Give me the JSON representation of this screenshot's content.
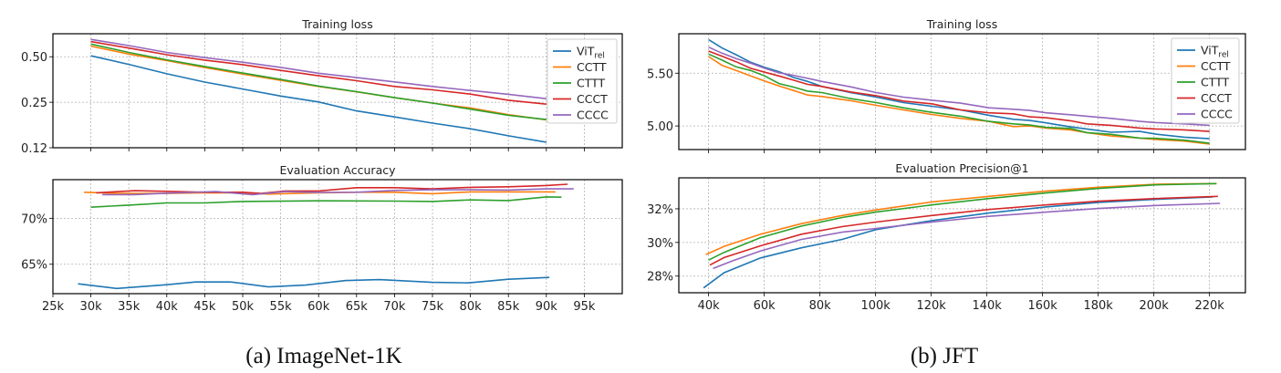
{
  "captions": [
    "(a) ImageNet-1K",
    "(b) JFT"
  ],
  "colors": {
    "ViT_rel": "#1f77b4",
    "CCTT": "#ff7f0e",
    "CTTT": "#2ca02c",
    "CCCT": "#d62728",
    "CCCC": "#9467bd"
  },
  "chart_data": [
    {
      "type": "line",
      "panel": "a",
      "title": "Training loss",
      "yscale": "log2",
      "ylim": [
        0.125,
        0.71
      ],
      "xlim": [
        25,
        100
      ],
      "grid": true,
      "legend": "top-right",
      "yticks": [
        0.5,
        0.25,
        0.125
      ],
      "ytick_labels": [
        "0.50",
        "0.25",
        "0.12"
      ],
      "xticks": [
        30,
        35,
        40,
        45,
        50,
        55,
        60,
        65,
        70,
        75,
        80,
        85,
        90,
        95
      ],
      "xtick_labels": [],
      "x": [
        30,
        35,
        40,
        45,
        50,
        55,
        60,
        65,
        70,
        75,
        80,
        85,
        90
      ],
      "series": [
        {
          "name": "ViT_rel",
          "y": [
            0.507,
            0.445,
            0.386,
            0.34,
            0.306,
            0.275,
            0.251,
            0.219,
            0.2,
            0.182,
            0.167,
            0.15,
            0.136
          ]
        },
        {
          "name": "CCTT",
          "y": [
            0.588,
            0.521,
            0.471,
            0.424,
            0.384,
            0.349,
            0.318,
            0.293,
            0.268,
            0.247,
            0.229,
            0.207,
            0.191
          ]
        },
        {
          "name": "CTTT",
          "y": [
            0.607,
            0.534,
            0.477,
            0.431,
            0.39,
            0.354,
            0.32,
            0.294,
            0.268,
            0.247,
            0.225,
            0.205,
            0.192
          ]
        },
        {
          "name": "CCCT",
          "y": [
            0.63,
            0.571,
            0.516,
            0.475,
            0.443,
            0.406,
            0.374,
            0.347,
            0.318,
            0.302,
            0.283,
            0.258,
            0.243
          ]
        },
        {
          "name": "CCCC",
          "y": [
            0.651,
            0.593,
            0.534,
            0.493,
            0.46,
            0.425,
            0.389,
            0.364,
            0.341,
            0.318,
            0.299,
            0.282,
            0.264
          ]
        }
      ]
    },
    {
      "type": "line",
      "panel": "a",
      "title": "Evaluation Accuracy",
      "ylim": [
        61.8,
        74.2
      ],
      "xlim": [
        25,
        100
      ],
      "grid": true,
      "yticks": [
        70,
        65
      ],
      "ytick_labels": [
        "70%",
        "65%"
      ],
      "xticks": [
        25,
        30,
        35,
        40,
        45,
        50,
        55,
        60,
        65,
        70,
        75,
        80,
        85,
        90,
        95
      ],
      "xtick_labels": [
        "25k",
        "30k",
        "35k",
        "40k",
        "45k",
        "50k",
        "55k",
        "60k",
        "65k",
        "70k",
        "75k",
        "80k",
        "85k",
        "90k",
        "95k"
      ],
      "series": [
        {
          "name": "ViT_rel",
          "x": [
            28.3,
            33.4,
            40,
            43.8,
            48.4,
            53.4,
            58.3,
            63.6,
            68,
            75,
            79.7,
            85,
            90.4
          ],
          "y": [
            62.87,
            62.37,
            62.77,
            63.07,
            63.07,
            62.53,
            62.73,
            63.23,
            63.33,
            63.03,
            62.97,
            63.37,
            63.57
          ]
        },
        {
          "name": "CCTT",
          "x": [
            29.1,
            34.2,
            40,
            45,
            50,
            53.4,
            60,
            65,
            70,
            75,
            80,
            85,
            91.2
          ],
          "y": [
            72.83,
            72.7,
            72.7,
            72.77,
            72.77,
            72.63,
            72.77,
            72.83,
            72.83,
            72.67,
            72.87,
            72.87,
            72.87
          ]
        },
        {
          "name": "CTTT",
          "x": [
            30,
            35,
            40,
            45,
            50,
            60,
            70,
            75,
            80,
            85,
            90,
            92
          ],
          "y": [
            71.2,
            71.43,
            71.67,
            71.67,
            71.83,
            71.9,
            71.87,
            71.83,
            72.0,
            71.93,
            72.33,
            72.3
          ]
        },
        {
          "name": "CCCT",
          "x": [
            30.7,
            35.8,
            40,
            45,
            50,
            52.4,
            55.6,
            60,
            65,
            70,
            75,
            80,
            85,
            90,
            92.8
          ],
          "y": [
            72.77,
            73.0,
            72.93,
            72.83,
            72.83,
            72.7,
            72.97,
            72.97,
            73.33,
            73.33,
            73.2,
            73.37,
            73.43,
            73.57,
            73.7
          ]
        },
        {
          "name": "CCCC",
          "x": [
            31.5,
            35.8,
            40,
            46.5,
            51.3,
            55.6,
            60,
            65,
            70,
            75,
            80,
            85,
            90,
            93.6
          ],
          "y": [
            72.57,
            72.57,
            72.73,
            72.9,
            72.57,
            72.9,
            72.8,
            72.83,
            73.03,
            73.1,
            73.1,
            73.07,
            73.2,
            73.2
          ]
        }
      ]
    },
    {
      "type": "line",
      "panel": "b",
      "title": "Training loss",
      "ylim": [
        4.776,
        5.874
      ],
      "xlim": [
        29.3,
        232.9
      ],
      "grid": true,
      "legend": "top-right",
      "yticks": [
        5.5,
        5.0
      ],
      "ytick_labels": [
        "5.50",
        "5.00"
      ],
      "xticks": [
        40,
        60,
        80,
        100,
        120,
        140,
        160,
        180,
        200,
        220
      ],
      "xtick_labels": [],
      "x": [
        40,
        44.8,
        49.9,
        55.1,
        60.2,
        65.3,
        70.5,
        75.6,
        80.7,
        91,
        100.2,
        110,
        120.2,
        130.5,
        140.7,
        149.5,
        155.4,
        161.2,
        170,
        175.9,
        184.6,
        194.9,
        200.7,
        210.9,
        220
      ],
      "series": [
        {
          "name": "ViT_rel",
          "y": [
            5.819,
            5.739,
            5.675,
            5.603,
            5.555,
            5.514,
            5.46,
            5.422,
            5.374,
            5.316,
            5.273,
            5.221,
            5.187,
            5.152,
            5.101,
            5.063,
            5.052,
            5.029,
            4.991,
            4.971,
            4.94,
            4.948,
            4.922,
            4.894,
            4.879
          ]
        },
        {
          "name": "CCTT",
          "y": [
            5.658,
            5.575,
            5.526,
            5.474,
            5.425,
            5.379,
            5.336,
            5.293,
            5.279,
            5.239,
            5.195,
            5.152,
            5.109,
            5.072,
            5.043,
            4.994,
            5.0,
            4.98,
            4.963,
            4.937,
            4.905,
            4.885,
            4.871,
            4.856,
            4.828
          ]
        },
        {
          "name": "CTTT",
          "y": [
            5.681,
            5.624,
            5.56,
            5.526,
            5.474,
            5.402,
            5.368,
            5.33,
            5.316,
            5.259,
            5.221,
            5.172,
            5.129,
            5.092,
            5.043,
            5.02,
            5.009,
            4.986,
            4.977,
            4.937,
            4.92,
            4.885,
            4.882,
            4.865,
            4.836
          ]
        },
        {
          "name": "CCCT",
          "y": [
            5.71,
            5.661,
            5.609,
            5.546,
            5.509,
            5.474,
            5.434,
            5.394,
            5.374,
            5.322,
            5.287,
            5.236,
            5.21,
            5.152,
            5.124,
            5.115,
            5.086,
            5.078,
            5.049,
            5.02,
            5.006,
            4.98,
            4.971,
            4.963,
            4.948
          ]
        },
        {
          "name": "CCCC",
          "y": [
            5.747,
            5.69,
            5.638,
            5.595,
            5.546,
            5.503,
            5.48,
            5.451,
            5.422,
            5.371,
            5.316,
            5.273,
            5.244,
            5.216,
            5.172,
            5.158,
            5.147,
            5.124,
            5.106,
            5.092,
            5.072,
            5.043,
            5.032,
            5.02,
            5.006
          ]
        }
      ]
    },
    {
      "type": "line",
      "panel": "b",
      "title": "Evaluation Precision@1",
      "ylim": [
        27.01,
        33.84
      ],
      "xlim": [
        29.3,
        232.9
      ],
      "grid": true,
      "yticks": [
        32,
        30,
        28
      ],
      "ytick_labels": [
        "32%",
        "30%",
        "28%"
      ],
      "xticks": [
        40,
        60,
        80,
        100,
        120,
        140,
        160,
        180,
        200,
        220
      ],
      "xtick_labels": [
        "40k",
        "60k",
        "80k",
        "100k",
        "120k",
        "140k",
        "160k",
        "180k",
        "200k",
        "220k"
      ],
      "series": [
        {
          "name": "ViT_rel",
          "x": [
            38.2,
            45.6,
            58.7,
            73.4,
            88,
            100.1,
            120.2,
            140.7,
            161.2,
            180.2,
            200.7,
            221.2
          ],
          "y": [
            27.3,
            28.2,
            29.08,
            29.68,
            30.18,
            30.76,
            31.3,
            31.75,
            32.11,
            32.38,
            32.56,
            32.7
          ]
        },
        {
          "name": "CCTT",
          "x": [
            39,
            45.6,
            58.7,
            73.4,
            88,
            100.1,
            120.2,
            140.7,
            161.2,
            180.2,
            200.7,
            222.6
          ],
          "y": [
            29.28,
            29.77,
            30.49,
            31.12,
            31.6,
            31.93,
            32.41,
            32.74,
            33.05,
            33.28,
            33.46,
            33.5
          ]
        },
        {
          "name": "CTTT",
          "x": [
            40,
            45.6,
            58.7,
            73.4,
            88,
            100.1,
            120.2,
            140.7,
            161.2,
            180.2,
            200.7,
            222.4
          ],
          "y": [
            28.95,
            29.41,
            30.29,
            30.97,
            31.48,
            31.8,
            32.23,
            32.61,
            32.94,
            33.21,
            33.42,
            33.5
          ]
        },
        {
          "name": "CCCT",
          "x": [
            40.4,
            45.6,
            58.7,
            73.4,
            88,
            100.1,
            120.2,
            140.7,
            161.2,
            180.2,
            200.7,
            223
          ],
          "y": [
            28.65,
            29.1,
            29.8,
            30.49,
            30.94,
            31.21,
            31.6,
            31.96,
            32.23,
            32.45,
            32.61,
            32.74
          ]
        },
        {
          "name": "CCCC",
          "x": [
            41.6,
            48.5,
            58.7,
            73.4,
            88,
            100.1,
            120.2,
            140.7,
            161.2,
            180.2,
            200.7,
            223.8
          ],
          "y": [
            28.45,
            28.9,
            29.5,
            30.18,
            30.61,
            30.83,
            31.21,
            31.55,
            31.8,
            32.02,
            32.2,
            32.32
          ]
        }
      ]
    }
  ]
}
